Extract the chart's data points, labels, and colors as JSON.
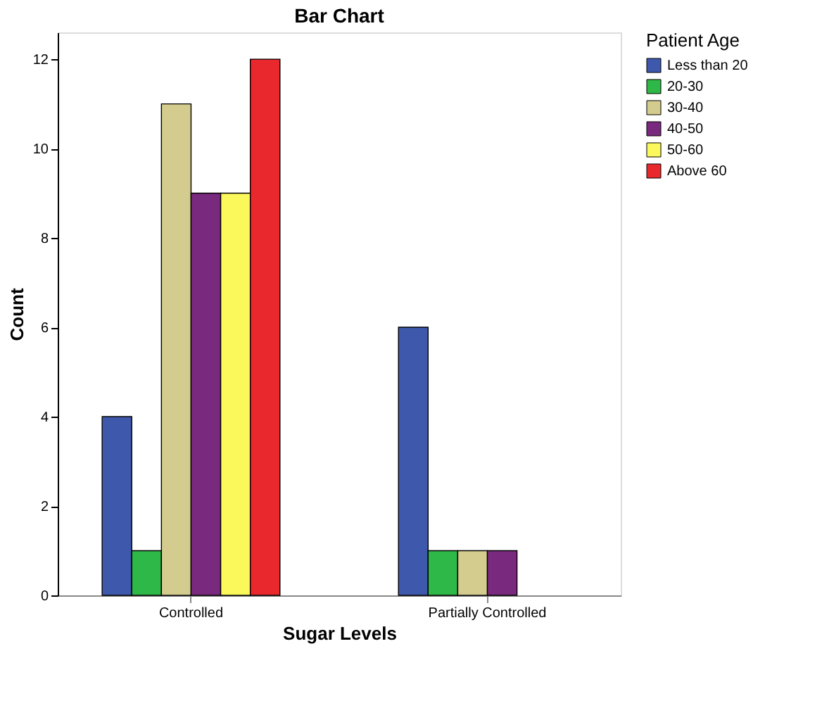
{
  "chart_data": {
    "type": "bar",
    "title": "Bar Chart",
    "xlabel": "Sugar Levels",
    "ylabel": "Count",
    "legend_title": "Patient Age",
    "categories": [
      "Controlled",
      "Partially Controlled"
    ],
    "series": [
      {
        "name": "Less than 20",
        "color": "#3e58ac",
        "values": [
          4,
          6
        ]
      },
      {
        "name": "20-30",
        "color": "#2eb848",
        "values": [
          1,
          1
        ]
      },
      {
        "name": "30-40",
        "color": "#d4cc8e",
        "values": [
          11,
          1
        ]
      },
      {
        "name": "40-50",
        "color": "#7a2a7e",
        "values": [
          9,
          1
        ]
      },
      {
        "name": "50-60",
        "color": "#fbf85c",
        "values": [
          9,
          null
        ]
      },
      {
        "name": "Above 60",
        "color": "#e8282c",
        "values": [
          12,
          null
        ]
      }
    ],
    "ylim": [
      0,
      12.6
    ],
    "yticks": [
      0,
      2,
      4,
      6,
      8,
      10,
      12
    ],
    "grid": false,
    "legend": "top right"
  }
}
